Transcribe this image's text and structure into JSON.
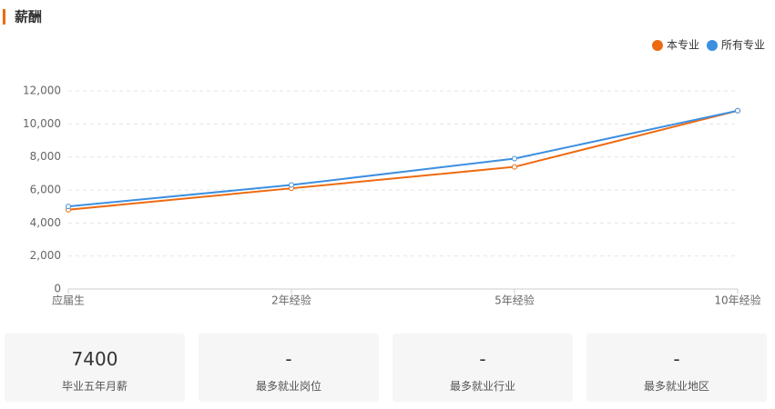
{
  "header": {
    "title": "薪酬"
  },
  "chart_data": {
    "type": "line",
    "categories": [
      "应届生",
      "2年经验",
      "5年经验",
      "10年经验"
    ],
    "series": [
      {
        "name": "本专业",
        "color": "#ee6a10",
        "values": [
          4800,
          6100,
          7400,
          10800
        ]
      },
      {
        "name": "所有专业",
        "color": "#3d8fe0",
        "values": [
          5000,
          6300,
          7900,
          10800
        ]
      }
    ],
    "ylim": [
      0,
      12000
    ],
    "yticks": [
      0,
      {
        "value": 2000,
        "label": "2,000"
      },
      {
        "value": 4000,
        "label": "4,000"
      },
      {
        "value": 6000,
        "label": "6,000"
      },
      {
        "value": 8000,
        "label": "8,000"
      },
      {
        "value": 10000,
        "label": "10,000"
      },
      {
        "value": 12000,
        "label": "12,000"
      }
    ],
    "grid": true
  },
  "cards": [
    {
      "value": 7400,
      "label": "毕业五年月薪"
    },
    {
      "value": "-",
      "label": "最多就业岗位"
    },
    {
      "value": "-",
      "label": "最多就业行业"
    },
    {
      "value": "-",
      "label": "最多就业地区"
    }
  ]
}
